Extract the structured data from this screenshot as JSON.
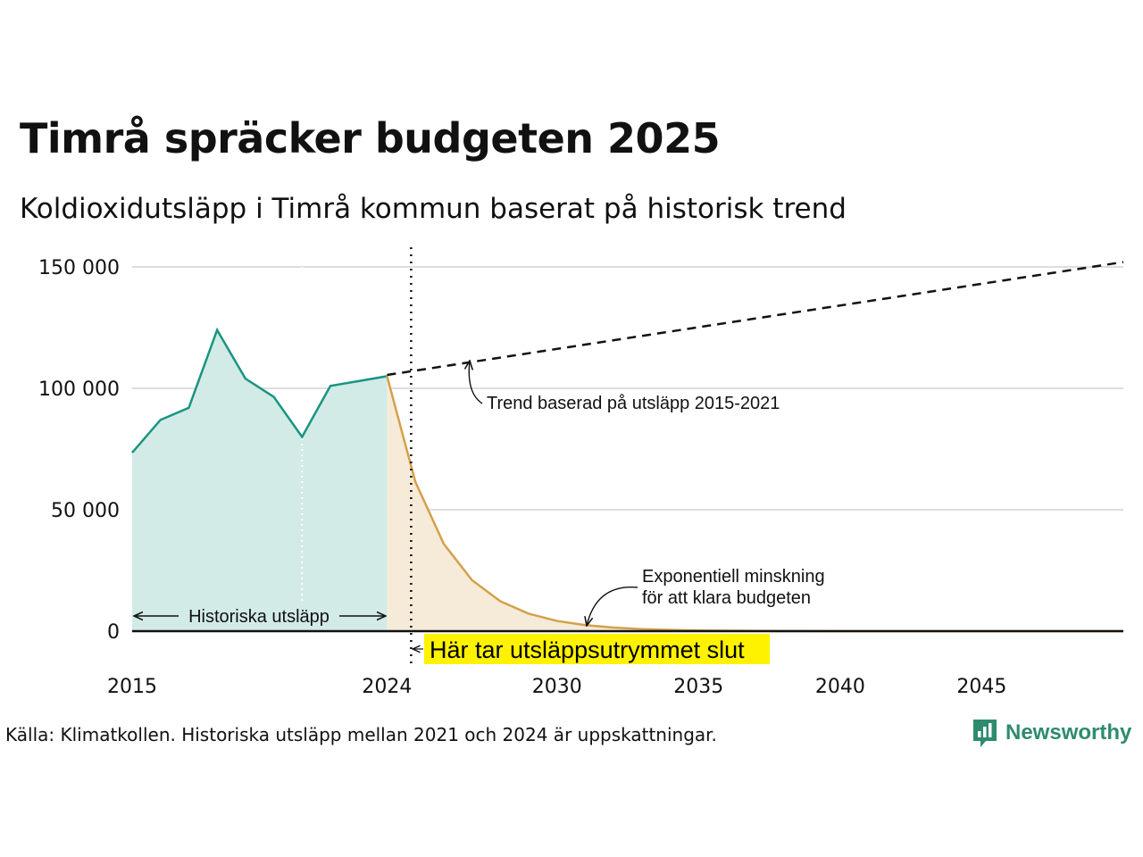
{
  "title": "Timrå spräcker budgeten 2025",
  "subtitle": "Koldioxidutsläpp i Timrå kommun baserat på historisk trend",
  "source": "Källa: Klimatkollen. Historiska utsläpp mellan 2021 och 2024 är uppskattningar.",
  "logo": {
    "name": "Newsworthy",
    "icon": "bar-chart-speech-bubble-icon"
  },
  "colors": {
    "historical_line": "#1a9480",
    "historical_fill": "#d2ebe7",
    "budget_line": "#d4a04a",
    "budget_fill": "#f6ebd9",
    "trend": "#111111",
    "highlight": "#fff200",
    "grid": "#dddddd"
  },
  "chart_data": {
    "type": "line",
    "title": "Timrå spräcker budgeten 2025",
    "subtitle": "Koldioxidutsläpp i Timrå kommun baserat på historisk trend",
    "xlabel": "",
    "ylabel": "",
    "xlim": [
      2015,
      2050
    ],
    "ylim": [
      0,
      150000
    ],
    "x_ticks": [
      2015,
      2024,
      2030,
      2035,
      2040,
      2045
    ],
    "x_tick_labels": [
      "2015",
      "2024",
      "2030",
      "2035",
      "2040",
      "2045"
    ],
    "y_ticks": [
      0,
      50000,
      100000,
      150000
    ],
    "y_tick_labels": [
      "0",
      "50 000",
      "100 000",
      "150 000"
    ],
    "grid": true,
    "series": [
      {
        "style": "solid-area",
        "x": [
          2015,
          2016,
          2017,
          2018,
          2019,
          2020,
          2021,
          2022,
          2023,
          2024
        ],
        "values": [
          73500,
          87000,
          92000,
          124000,
          104000,
          96500,
          80000,
          101000,
          103000,
          105000
        ]
      },
      {
        "style": "solid-area",
        "x": [
          2024,
          2025,
          2026,
          2027,
          2028,
          2029,
          2030,
          2031,
          2032,
          2033,
          2034,
          2035,
          2036,
          2038,
          2040,
          2045,
          2050
        ],
        "values": [
          105000,
          61500,
          36000,
          21000,
          12300,
          7200,
          4200,
          2500,
          1450,
          850,
          500,
          290,
          170,
          60,
          20,
          2,
          0
        ]
      },
      {
        "style": "dashed",
        "x": [
          2024,
          2050
        ],
        "values": [
          105500,
          152000
        ]
      }
    ],
    "annotations": {
      "historical": "Historiska utsläpp",
      "trend": "Trend baserad på utsläpp 2015-2021",
      "decline_line1": "Exponentiell minskning",
      "decline_line2": "för att klara budgeten",
      "budget_end": "Här tar utsläppsutrymmet slut"
    },
    "budget_end_year": 2024.85,
    "estimate_start_year": 2021
  }
}
